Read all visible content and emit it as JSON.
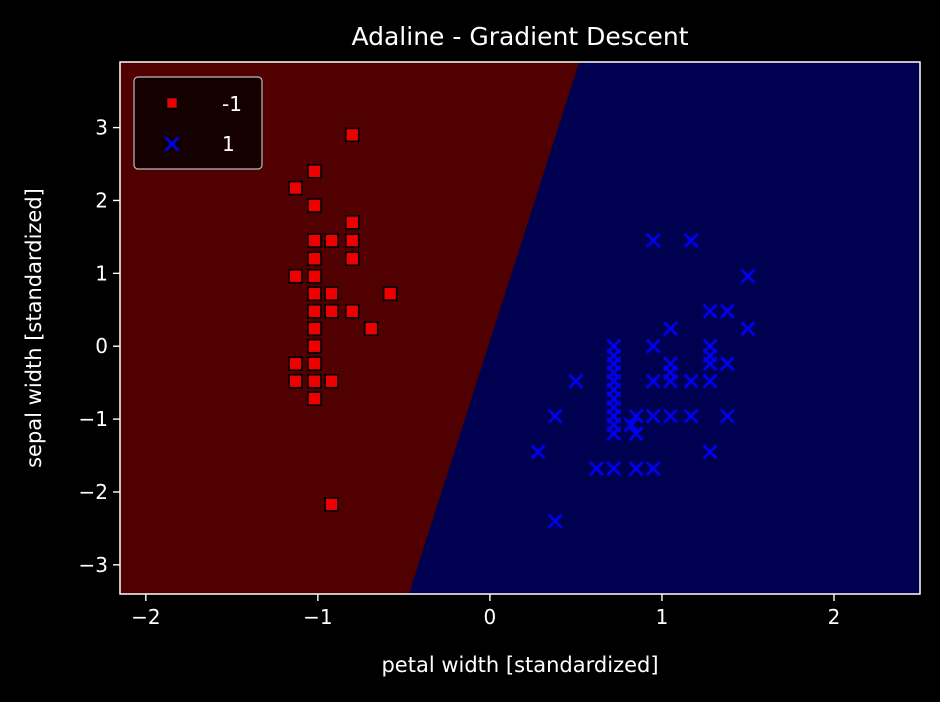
{
  "chart_data": {
    "type": "scatter",
    "title": "Adaline - Gradient Descent",
    "xlabel": "petal width [standardized]",
    "ylabel": "sepal width [standardized]",
    "xlim": [
      -2.15,
      2.5
    ],
    "ylim": [
      -3.4,
      3.9
    ],
    "xticks": [
      -2,
      -1,
      0,
      1,
      2
    ],
    "yticks": [
      -3,
      -2,
      -1,
      0,
      1,
      2,
      3
    ],
    "grid": false,
    "legend_position": "top-left",
    "decision_boundary": {
      "points": [
        [
          0.52,
          3.9
        ],
        [
          -0.47,
          -3.4
        ]
      ],
      "left_region_color": "#500000",
      "right_region_color": "#000050"
    },
    "series": [
      {
        "name": "-1",
        "marker": "square",
        "color": "#ee0000",
        "edge_color": "#000000",
        "points": [
          [
            -0.8,
            2.9
          ],
          [
            -1.02,
            2.4
          ],
          [
            -1.13,
            2.17
          ],
          [
            -1.02,
            1.93
          ],
          [
            -0.8,
            1.7
          ],
          [
            -1.02,
            1.45
          ],
          [
            -0.92,
            1.45
          ],
          [
            -0.8,
            1.45
          ],
          [
            -1.02,
            1.2
          ],
          [
            -0.8,
            1.2
          ],
          [
            -1.13,
            0.96
          ],
          [
            -1.02,
            0.96
          ],
          [
            -1.02,
            0.72
          ],
          [
            -0.92,
            0.72
          ],
          [
            -0.58,
            0.72
          ],
          [
            -1.02,
            0.48
          ],
          [
            -0.92,
            0.48
          ],
          [
            -0.8,
            0.48
          ],
          [
            -1.02,
            0.24
          ],
          [
            -0.69,
            0.24
          ],
          [
            -1.02,
            0.0
          ],
          [
            -1.13,
            -0.24
          ],
          [
            -1.02,
            -0.24
          ],
          [
            -1.13,
            -0.48
          ],
          [
            -1.02,
            -0.48
          ],
          [
            -0.92,
            -0.48
          ],
          [
            -1.02,
            -0.72
          ],
          [
            -0.92,
            -2.17
          ]
        ]
      },
      {
        "name": "1",
        "marker": "x",
        "color": "#0000ee",
        "points": [
          [
            0.95,
            1.45
          ],
          [
            1.17,
            1.45
          ],
          [
            1.5,
            0.96
          ],
          [
            1.28,
            0.48
          ],
          [
            1.38,
            0.48
          ],
          [
            1.05,
            0.24
          ],
          [
            1.5,
            0.24
          ],
          [
            0.72,
            0.0
          ],
          [
            0.95,
            0.0
          ],
          [
            1.28,
            0.0
          ],
          [
            0.72,
            -0.13
          ],
          [
            1.28,
            -0.13
          ],
          [
            0.72,
            -0.24
          ],
          [
            1.05,
            -0.24
          ],
          [
            1.28,
            -0.24
          ],
          [
            1.38,
            -0.24
          ],
          [
            0.72,
            -0.36
          ],
          [
            1.05,
            -0.36
          ],
          [
            0.5,
            -0.48
          ],
          [
            0.72,
            -0.48
          ],
          [
            0.95,
            -0.48
          ],
          [
            1.05,
            -0.48
          ],
          [
            1.17,
            -0.48
          ],
          [
            1.28,
            -0.48
          ],
          [
            0.72,
            -0.6
          ],
          [
            0.72,
            -0.72
          ],
          [
            0.72,
            -0.84
          ],
          [
            0.38,
            -0.96
          ],
          [
            0.72,
            -0.96
          ],
          [
            0.85,
            -0.96
          ],
          [
            0.95,
            -0.96
          ],
          [
            1.05,
            -0.96
          ],
          [
            1.17,
            -0.96
          ],
          [
            1.38,
            -0.96
          ],
          [
            0.72,
            -1.08
          ],
          [
            0.82,
            -1.08
          ],
          [
            0.72,
            -1.2
          ],
          [
            0.85,
            -1.2
          ],
          [
            0.28,
            -1.45
          ],
          [
            1.28,
            -1.45
          ],
          [
            0.62,
            -1.68
          ],
          [
            0.72,
            -1.68
          ],
          [
            0.85,
            -1.68
          ],
          [
            0.95,
            -1.68
          ],
          [
            0.38,
            -2.4
          ]
        ]
      }
    ]
  }
}
